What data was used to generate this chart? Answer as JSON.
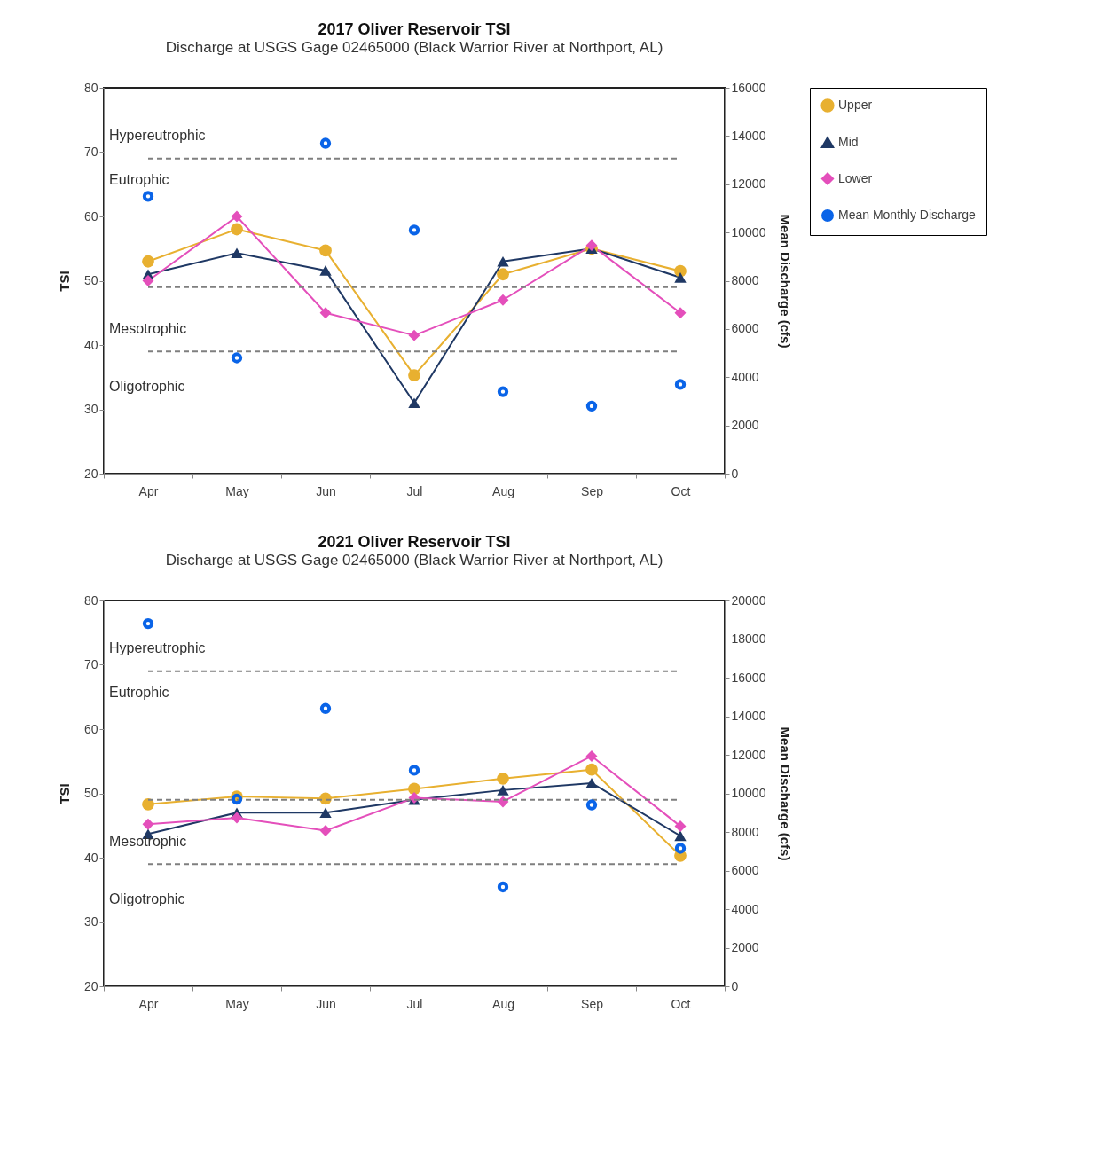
{
  "chart_data": [
    {
      "type": "line",
      "title": "2017 Oliver Reservoir TSI",
      "subtitle": "Discharge at USGS Gage 02465000 (Black Warrior River at Northport, AL)",
      "categories": [
        "Apr",
        "May",
        "Jun",
        "Jul",
        "Aug",
        "Sep",
        "Oct"
      ],
      "ylabel": "TSI",
      "y2label": "Mean Discharge (cfs)",
      "ylim": [
        20,
        80
      ],
      "yticks": [
        20,
        30,
        40,
        50,
        60,
        70,
        80
      ],
      "y2lim": [
        0,
        16000
      ],
      "y2ticks": [
        0,
        2000,
        4000,
        6000,
        8000,
        10000,
        12000,
        14000,
        16000
      ],
      "grid": false,
      "legend": "right",
      "series": [
        {
          "name": "Upper",
          "color": "#e8b030",
          "marker": "circle",
          "values": [
            53,
            58,
            54.7,
            35.3,
            51,
            55,
            51.5
          ]
        },
        {
          "name": "Mid",
          "color": "#1f3864",
          "marker": "triangle",
          "values": [
            51,
            54.3,
            51.6,
            31,
            53,
            55,
            50.5
          ]
        },
        {
          "name": "Lower",
          "color": "#e44fbb",
          "marker": "diamond",
          "values": [
            50,
            60,
            45,
            41.5,
            47,
            55.5,
            45
          ]
        },
        {
          "name": "Mean Monthly Discharge",
          "type": "scatter",
          "axis": "y2",
          "color": "#0a64e8",
          "marker": "circle",
          "values": [
            11500,
            4800,
            13700,
            10100,
            3400,
            2800,
            3700
          ]
        }
      ],
      "ref_lines": [
        {
          "axis": "y",
          "value": 69,
          "color": "#7f7f7f",
          "line_style": "dashed"
        },
        {
          "axis": "y",
          "value": 49,
          "color": "#7f7f7f",
          "line_style": "dashed"
        },
        {
          "axis": "y",
          "value": 39,
          "color": "#7f7f7f",
          "line_style": "dashed"
        }
      ],
      "annotations": [
        "Hypereutrophic",
        "Eutrophic",
        "Mesotrophic",
        "Oligotrophic"
      ]
    },
    {
      "type": "line",
      "title": "2021 Oliver Reservoir TSI",
      "subtitle": "Discharge at USGS Gage 02465000 (Black Warrior River at Northport, AL)",
      "categories": [
        "Apr",
        "May",
        "Jun",
        "Jul",
        "Aug",
        "Sep",
        "Oct"
      ],
      "ylabel": "TSI",
      "y2label": "Mean Discharge (cfs)",
      "ylim": [
        20,
        80
      ],
      "yticks": [
        20,
        30,
        40,
        50,
        60,
        70,
        80
      ],
      "y2lim": [
        0,
        20000
      ],
      "y2ticks": [
        0,
        2000,
        4000,
        6000,
        8000,
        10000,
        12000,
        14000,
        16000,
        18000,
        20000
      ],
      "grid": false,
      "legend": "right",
      "series": [
        {
          "name": "Upper",
          "color": "#e8b030",
          "marker": "circle",
          "values": [
            48.3,
            49.5,
            49.2,
            50.7,
            52.3,
            53.7,
            40.3
          ]
        },
        {
          "name": "Mid",
          "color": "#1f3864",
          "marker": "triangle",
          "values": [
            43.7,
            47,
            47,
            49,
            50.5,
            51.6,
            43.4
          ]
        },
        {
          "name": "Lower",
          "color": "#e44fbb",
          "marker": "diamond",
          "values": [
            45.2,
            46.2,
            44.2,
            49.3,
            48.7,
            55.8,
            44.9
          ]
        },
        {
          "name": "Mean Monthly Discharge",
          "type": "scatter",
          "axis": "y2",
          "color": "#0a64e8",
          "marker": "circle",
          "values": [
            18800,
            9700,
            14400,
            11200,
            5150,
            9400,
            7150
          ]
        }
      ],
      "ref_lines": [
        {
          "axis": "y",
          "value": 69,
          "color": "#7f7f7f",
          "line_style": "dashed"
        },
        {
          "axis": "y",
          "value": 49,
          "color": "#7f7f7f",
          "line_style": "dashed"
        },
        {
          "axis": "y",
          "value": 39,
          "color": "#7f7f7f",
          "line_style": "dashed"
        }
      ],
      "annotations": [
        "Hypereutrophic",
        "Eutrophic",
        "Mesotrophic",
        "Oligotrophic"
      ]
    }
  ]
}
